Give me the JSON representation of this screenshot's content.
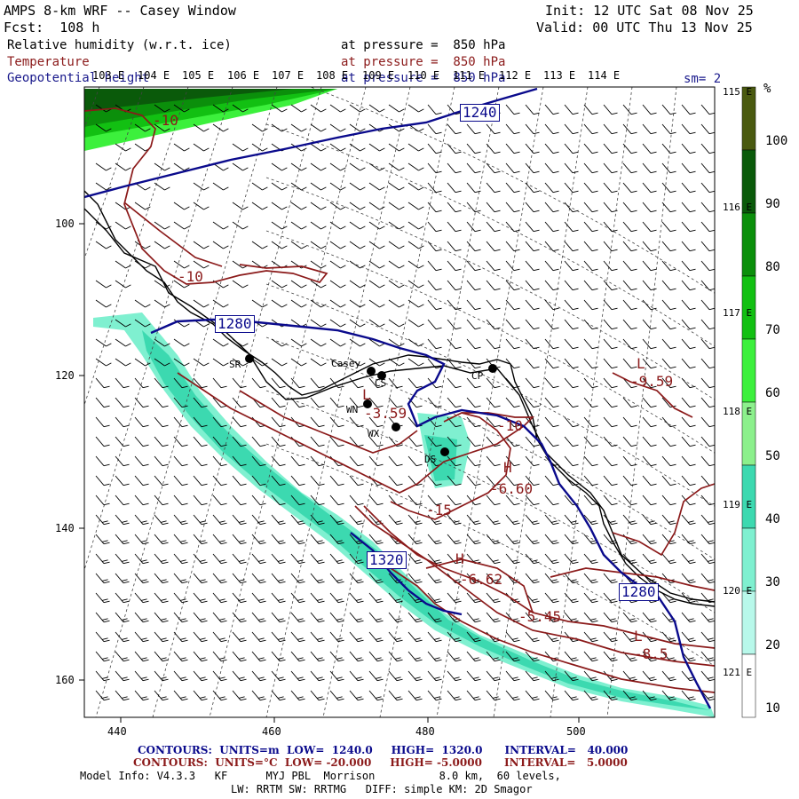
{
  "header": {
    "title": "AMPS 8-km WRF -- Casey Window",
    "fcst": "Fcst:  108 h",
    "init": "Init: 12 UTC Sat 08 Nov 25",
    "valid": "Valid: 00 UTC Thu 13 Nov 25",
    "field1": "Relative humidity (w.r.t. ice)",
    "field2": "Temperature",
    "field3": "Geopotential height",
    "press1": "at pressure =  850 hPa",
    "press2": "at pressure =  850 hPa",
    "press3": "at pressure =  850 hPa",
    "sm": "sm= 2"
  },
  "top_lon_labels": [
    "103 E",
    "104 E",
    "105 E",
    "106 E",
    "107 E",
    "108 E",
    "109 E",
    "110 E",
    "111 E",
    "112 E",
    "113 E",
    "114 E"
  ],
  "right_lon_labels": [
    "115 E",
    "116 E",
    "117 E",
    "118 E",
    "119 E",
    "120 E",
    "121 E"
  ],
  "x_ticks": [
    "440",
    "460",
    "480",
    "500"
  ],
  "y_ticks": [
    "100",
    "120",
    "140",
    "160"
  ],
  "colorbar": {
    "unit": "%",
    "labels": [
      "100",
      "90",
      "80",
      "70",
      "60",
      "50",
      "40",
      "30",
      "20",
      "10"
    ],
    "colors": [
      "#4a5a10",
      "#0a5a0a",
      "#0b8f0b",
      "#12c012",
      "#3cf03c",
      "#8cf08c",
      "#3cd9b0",
      "#7ff0d0",
      "#b8f8ea",
      "#ffffff"
    ]
  },
  "map_labels": {
    "casey": "Casey",
    "stations": [
      "SR",
      "CS",
      "WN",
      "WX",
      "DS",
      "CP"
    ],
    "height_contours": [
      "1240",
      "1280",
      "1320",
      "1280"
    ],
    "temp_values": [
      "-10",
      "-10",
      "-9.59",
      "-10",
      "-6.60",
      "-3.59",
      "-15",
      "-6.62",
      "-5.45",
      "-8.5",
      "H",
      "H",
      "L",
      "L",
      "L"
    ]
  },
  "footer": {
    "contour1": "CONTOURS:  UNITS=m  LOW=  1240.0     HIGH=  1320.0      INTERVAL=   40.000",
    "contour2": "CONTOURS:  UNITS=°C  LOW= -20.000     HIGH= -5.0000      INTERVAL=   5.0000",
    "model1": "Model Info: V4.3.3   KF      MYJ PBL  Morrison          8.0 km,  60 levels,",
    "model2": "LW: RRTM SW: RRTMG   DIFF: simple KM: 2D Smagor"
  },
  "colors": {
    "height": "#0a0a8c",
    "temperature": "#8b1a1a",
    "coast": "#000000"
  }
}
